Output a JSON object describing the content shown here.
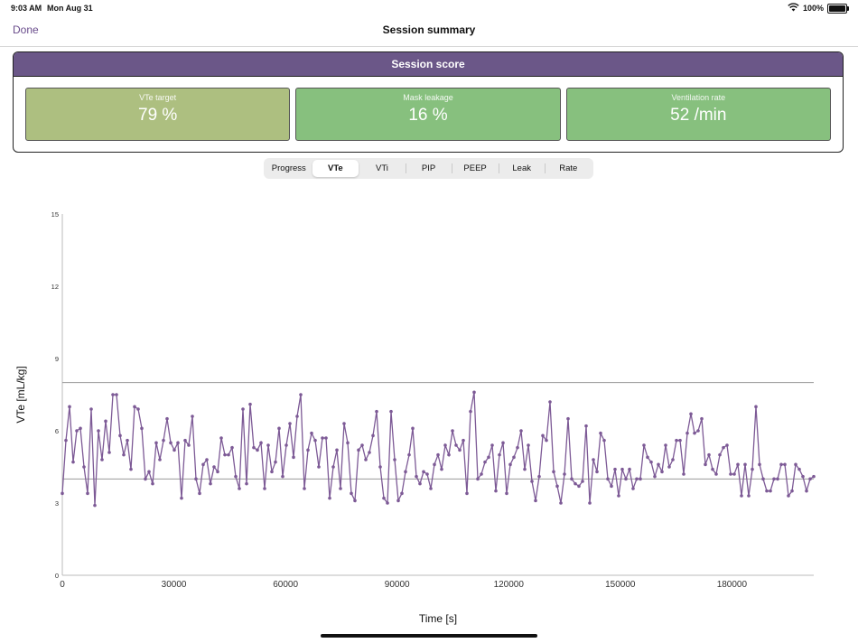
{
  "status_bar": {
    "time": "9:03 AM",
    "date": "Mon Aug 31",
    "battery": "100%",
    "wifi_icon": "wifi-icon",
    "battery_icon": "battery-icon"
  },
  "nav": {
    "done_label": "Done",
    "title": "Session summary"
  },
  "score": {
    "header": "Session score",
    "tiles": [
      {
        "label": "VTe target",
        "value": "79 %",
        "color": "#adbf80"
      },
      {
        "label": "Mask leakage",
        "value": "16 %",
        "color": "#87c07e"
      },
      {
        "label": "Ventilation rate",
        "value": "52 /min",
        "color": "#87c07e"
      }
    ]
  },
  "tabs": {
    "items": [
      "Progress",
      "VTe",
      "VTi",
      "PIP",
      "PEEP",
      "Leak",
      "Rate"
    ],
    "selected": "VTe"
  },
  "chart_data": {
    "type": "line",
    "xlabel": "Time [s]",
    "ylabel": "VTe [mL/kg]",
    "xlim": [
      0,
      202000
    ],
    "ylim": [
      0,
      15
    ],
    "x_ticks": [
      0,
      30000,
      60000,
      90000,
      120000,
      150000,
      180000
    ],
    "y_ticks": [
      0,
      3,
      6,
      9,
      12,
      15
    ],
    "reference_lines": [
      4,
      8
    ],
    "line_color": "#7d5a96",
    "reference_color": "#999999",
    "grid": false,
    "series": [
      {
        "values": [
          3.4,
          5.6,
          7.0,
          4.7,
          6.0,
          6.1,
          4.5,
          3.4,
          6.9,
          2.9,
          6.0,
          4.8,
          6.4,
          5.1,
          7.5,
          7.5,
          5.8,
          5.0,
          5.6,
          4.4,
          7.0,
          6.9,
          6.1,
          4.0,
          4.3,
          3.8,
          5.5,
          4.8,
          5.6,
          6.5,
          5.5,
          5.2,
          5.5,
          3.2,
          5.6,
          5.4,
          6.6,
          4.0,
          3.4,
          4.6,
          4.8,
          3.8,
          4.5,
          4.3,
          5.7,
          5.0,
          5.0,
          5.3,
          4.1,
          3.6,
          6.9,
          3.8,
          7.1,
          5.3,
          5.2,
          5.5,
          3.6,
          5.4,
          4.3,
          4.7,
          6.1,
          4.1,
          5.4,
          6.3,
          4.9,
          6.6,
          7.5,
          3.6,
          5.2,
          5.9,
          5.6,
          4.5,
          5.7,
          5.7,
          3.2,
          4.5,
          5.2,
          3.6,
          6.3,
          5.5,
          3.4,
          3.1,
          5.2,
          5.4,
          4.8,
          5.1,
          5.8,
          6.8,
          4.5,
          3.2,
          3.0,
          6.8,
          4.8,
          3.1,
          3.4,
          4.3,
          5.0,
          6.1,
          4.1,
          3.8,
          4.3,
          4.2,
          3.6,
          4.6,
          5.0,
          4.4,
          5.4,
          5.0,
          6.0,
          5.4,
          5.2,
          5.6,
          3.4,
          6.8,
          7.6,
          4.0,
          4.2,
          4.7,
          4.9,
          5.4,
          3.5,
          5.0,
          5.5,
          3.4,
          4.6,
          4.9,
          5.3,
          6.0,
          4.4,
          5.4,
          3.9,
          3.1,
          4.1,
          5.8,
          5.6,
          7.2,
          4.3,
          3.7,
          3.0,
          4.2,
          6.5,
          4.0,
          3.8,
          3.7,
          3.9,
          6.2,
          3.0,
          4.8,
          4.3,
          5.9,
          5.6,
          4.0,
          3.7,
          4.4,
          3.3,
          4.4,
          4.0,
          4.4,
          3.6,
          4.0,
          4.0,
          5.4,
          4.9,
          4.7,
          4.1,
          4.6,
          4.3,
          5.4,
          4.5,
          4.8,
          5.6,
          5.6,
          4.2,
          5.9,
          6.7,
          5.9,
          6.0,
          6.5,
          4.6,
          5.0,
          4.4,
          4.2,
          5.0,
          5.3,
          5.4,
          4.2,
          4.2,
          4.6,
          3.3,
          4.6,
          3.3,
          4.4,
          7.0,
          4.6,
          4.0,
          3.5,
          3.5,
          4.0,
          4.0,
          4.6,
          4.6,
          3.3,
          3.5,
          4.6,
          4.4,
          4.1,
          3.5,
          4.0,
          4.1
        ]
      }
    ]
  }
}
